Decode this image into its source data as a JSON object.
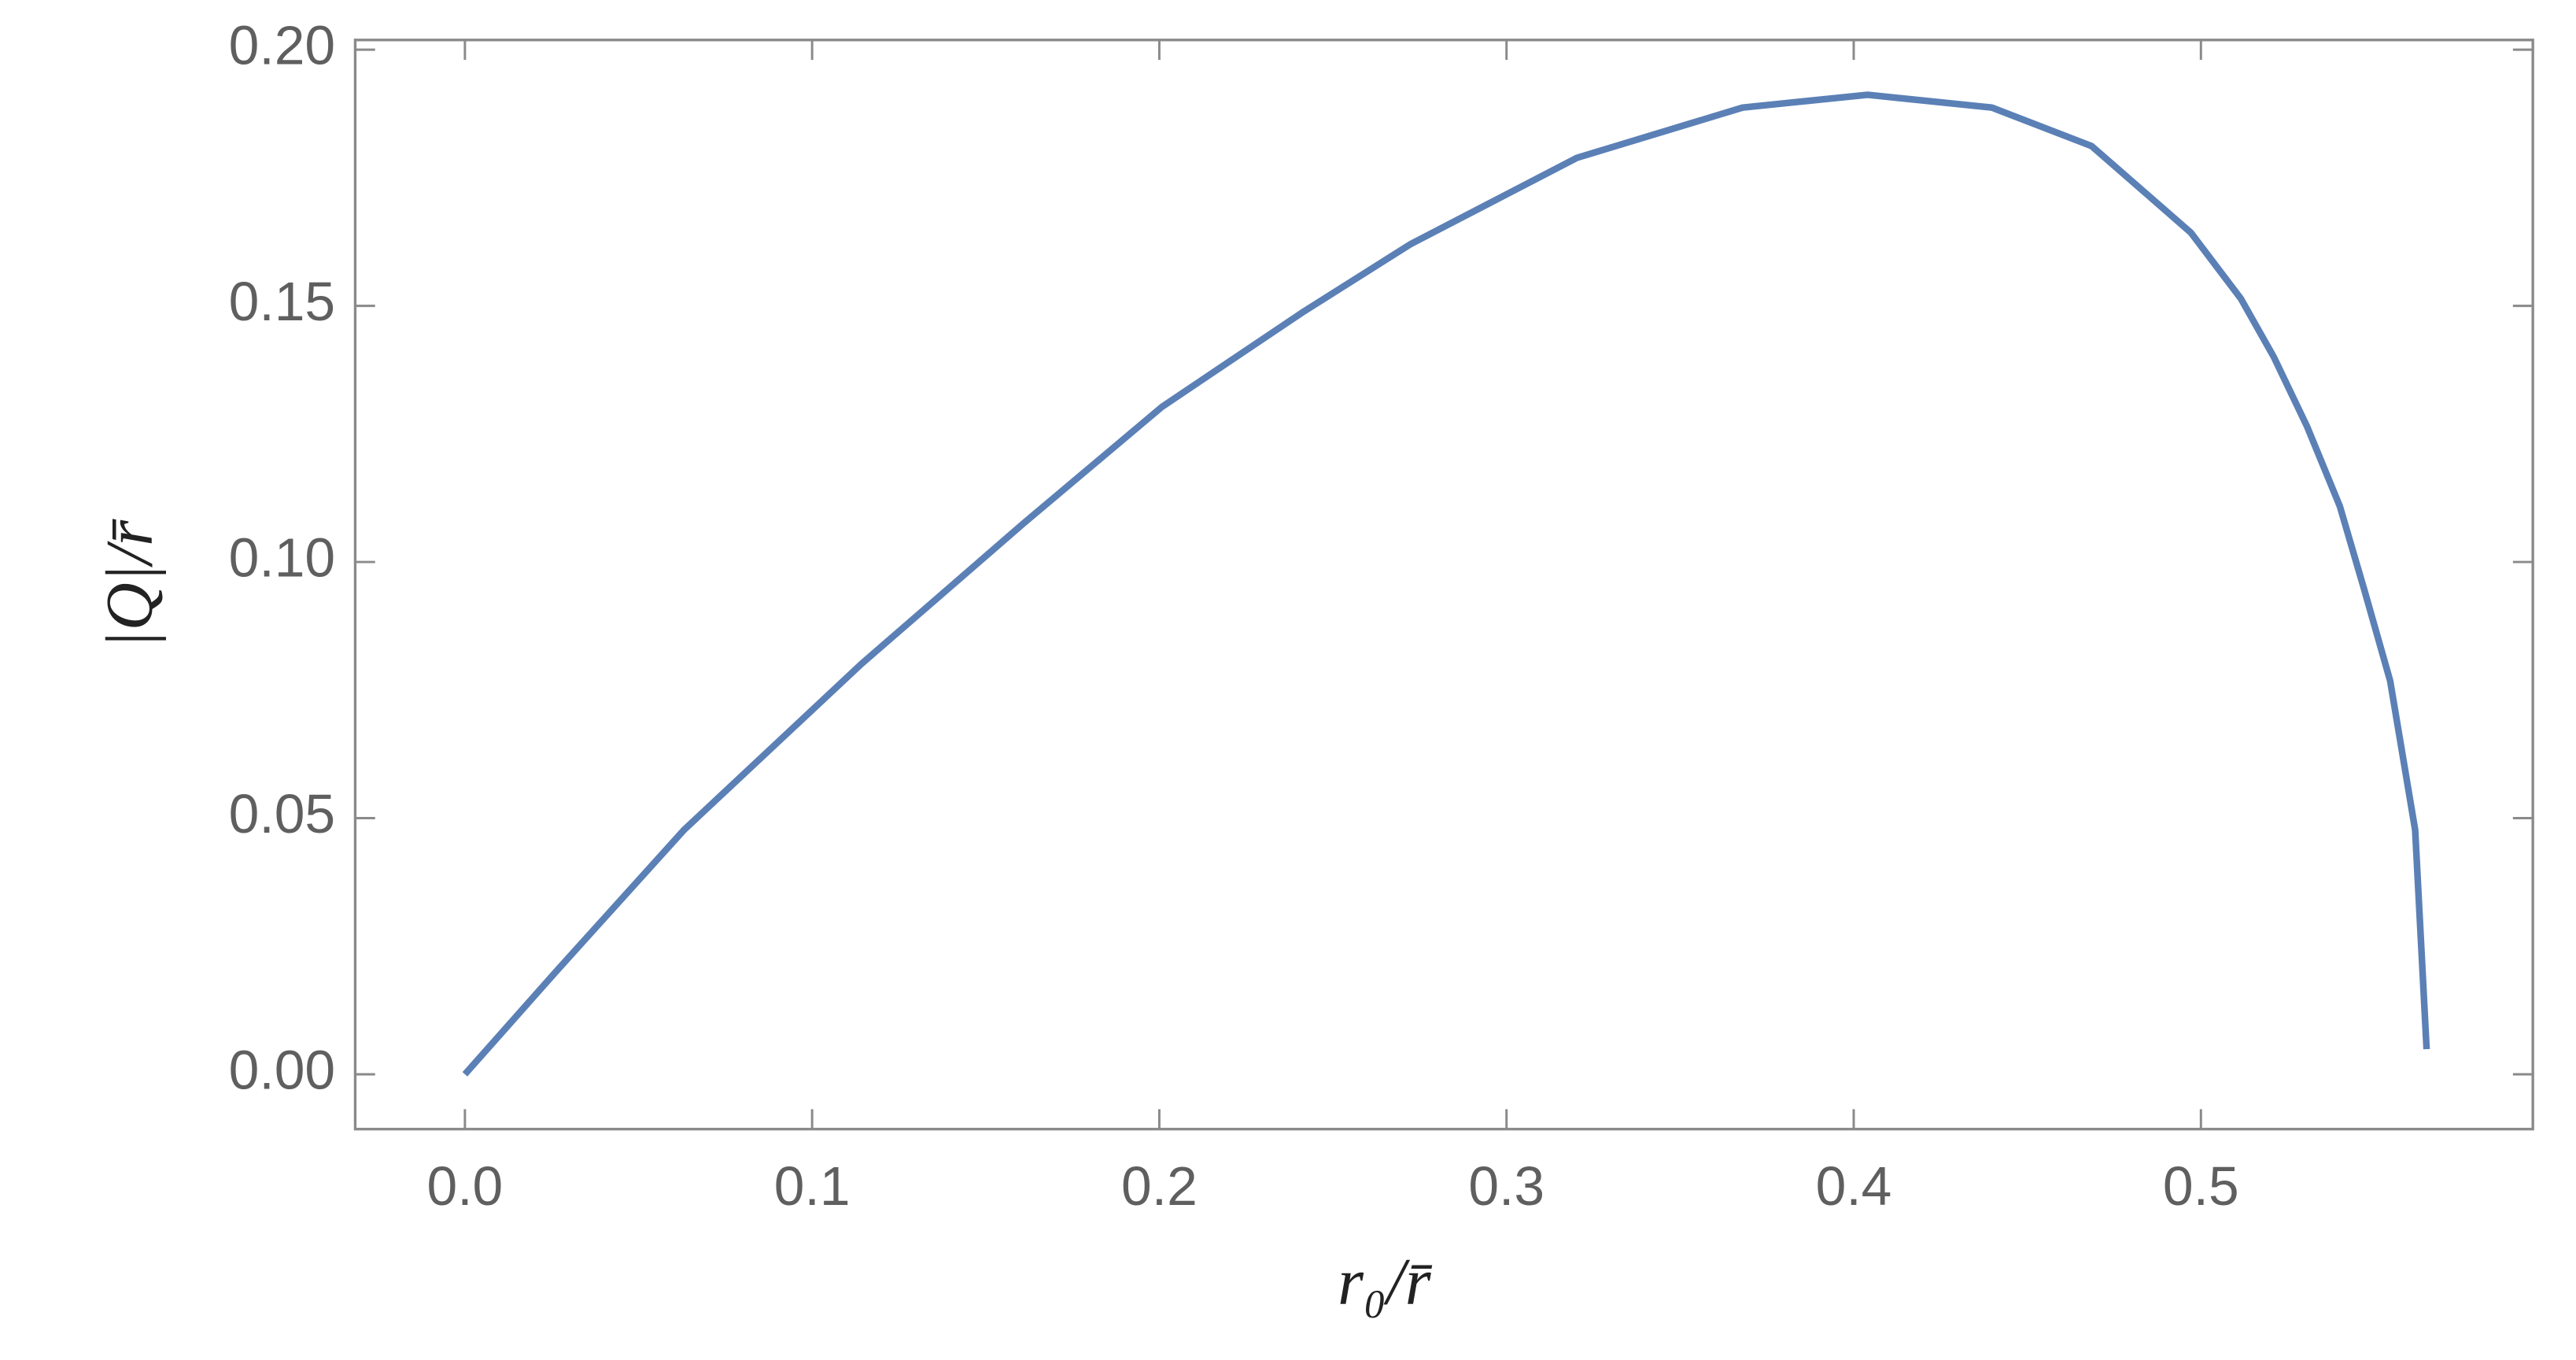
{
  "chart_data": {
    "type": "line",
    "x_label": "r₀/r̄",
    "y_label": "|Q|/r̄",
    "x": [
      0,
      0.0263,
      0.0631,
      0.1142,
      0.161,
      0.2008,
      0.2414,
      0.2725,
      0.3203,
      0.368,
      0.404,
      0.4398,
      0.4685,
      0.4971,
      0.5115,
      0.521,
      0.5306,
      0.54,
      0.547,
      0.5545,
      0.5617,
      0.565
    ],
    "series": [
      {
        "color": "#5b80b6",
        "values": [
          0,
          0.0201,
          0.0477,
          0.0801,
          0.1076,
          0.1303,
          0.1488,
          0.1621,
          0.1789,
          0.1887,
          0.1912,
          0.1887,
          0.1812,
          0.1643,
          0.1514,
          0.14,
          0.1264,
          0.1109,
          0.0947,
          0.0768,
          0.0477,
          0.0049
        ]
      }
    ],
    "xlim": [
      -0.0316,
      0.5956
    ],
    "ylim": [
      -0.0107,
      0.2019
    ],
    "xticks": [
      {
        "value": 0,
        "label": "0.0"
      },
      0.1,
      0.2,
      0.3,
      0.4,
      0.5
    ],
    "yticks": [
      {
        "value": 0,
        "label": "0.00"
      },
      {
        "value": 0.05,
        "label": "0.05"
      },
      {
        "value": 0.1,
        "label": "0.10"
      },
      {
        "value": 0.15,
        "label": "0.15"
      },
      {
        "value": 0.2,
        "label": "0.20"
      }
    ]
  }
}
